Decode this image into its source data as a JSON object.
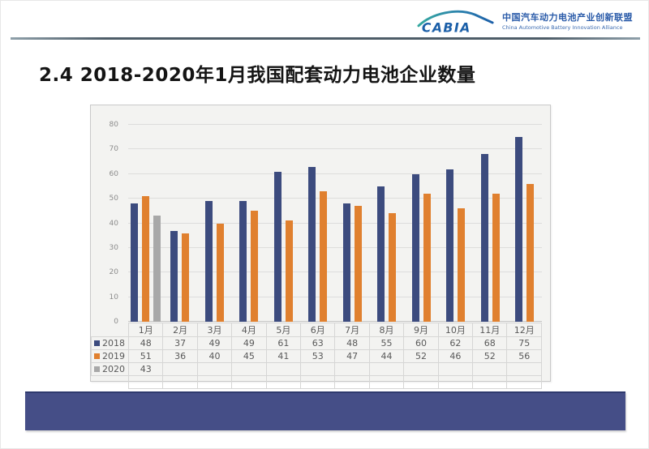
{
  "header": {
    "logo": {
      "abbr": "CABIA",
      "name_cn": "中国汽车动力电池产业创新联盟",
      "name_en": "China Automotive Battery Innovation Alliance"
    }
  },
  "title": "2.4 2018-2020年1月我国配套动力电池企业数量",
  "chart_data": {
    "type": "bar",
    "categories": [
      "1月",
      "2月",
      "3月",
      "4月",
      "5月",
      "6月",
      "7月",
      "8月",
      "9月",
      "10月",
      "11月",
      "12月"
    ],
    "series": [
      {
        "name": "2018",
        "color": "#3c4b7e",
        "values": [
          48,
          37,
          49,
          49,
          61,
          63,
          48,
          55,
          60,
          62,
          68,
          75
        ]
      },
      {
        "name": "2019",
        "color": "#e0802f",
        "values": [
          51,
          36,
          40,
          45,
          41,
          53,
          47,
          44,
          52,
          46,
          52,
          56
        ]
      },
      {
        "name": "2020",
        "color": "#a8a8a8",
        "values": [
          43,
          null,
          null,
          null,
          null,
          null,
          null,
          null,
          null,
          null,
          null,
          null
        ]
      }
    ],
    "title": "",
    "xlabel": "",
    "ylabel": "",
    "ylim": [
      0,
      80
    ],
    "ytick_interval": 10,
    "grid": true,
    "legend_position": "data-table-left",
    "data_table_shown": true
  },
  "colors": {
    "bar_2018": "#3c4b7e",
    "bar_2019": "#e0802f",
    "bar_2020": "#a8a8a8",
    "footer_band": "#454e87",
    "header_rule": "#4e5d68",
    "plot_background": "#f3f3f1",
    "logo_blue": "#1b5fa8",
    "logo_teal": "#35a8a0"
  }
}
